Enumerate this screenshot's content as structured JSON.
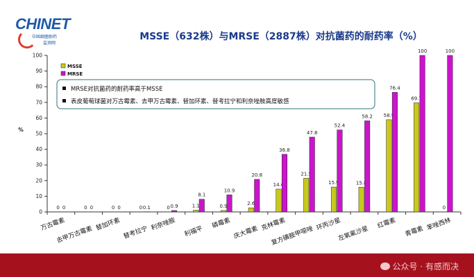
{
  "logo": {
    "text": "CHINET",
    "sub1": "中国细菌耐药",
    "sub2": "监测网"
  },
  "chart_data": {
    "type": "bar",
    "title": "MSSE（632株）与MRSE（2887株）对抗菌药的耐药率（%）",
    "ylabel": "%",
    "xlabel": "",
    "ylim": [
      0,
      100
    ],
    "yticks": [
      0,
      10,
      20,
      30,
      40,
      50,
      60,
      70,
      80,
      90,
      100
    ],
    "grid": false,
    "legend_position": "top-left",
    "categories": [
      "万古霉素",
      "去甲万古霉素",
      "替加环素",
      "替考拉宁",
      "利奈唑胺",
      "利福平",
      "磷霉素",
      "庆大霉素",
      "克林霉素",
      "复方磺胺甲噁唑",
      "环丙沙星",
      "左氧氟沙星",
      "红霉素",
      "青霉素",
      "苯唑西林"
    ],
    "series": [
      {
        "name": "MSSE",
        "color": "#c8c81e",
        "values": [
          0,
          0,
          0,
          0,
          0,
          1.1,
          0.9,
          2.6,
          14.6,
          21.5,
          15.9,
          15.8,
          58.9,
          69.7,
          0
        ],
        "labels": [
          "0",
          "0",
          "0",
          "0",
          "0",
          "1.1",
          "0.9",
          "2.6",
          "14.6",
          "21.5",
          "15.9",
          "15.8",
          "58.9",
          "69.7",
          "0"
        ]
      },
      {
        "name": "MRSE",
        "color": "#cc14cc",
        "values": [
          0,
          0,
          0,
          0.1,
          0.9,
          8.1,
          10.9,
          20.8,
          36.8,
          47.8,
          52.4,
          58.2,
          76.4,
          100,
          100
        ],
        "labels": [
          "0",
          "0",
          "0",
          "0.1",
          "0.9",
          "8.1",
          "10.9",
          "20.8",
          "36.8",
          "47.8",
          "52.4",
          "58.2",
          "76.4",
          "100",
          "100"
        ]
      }
    ],
    "notes": [
      "MRSE对抗菌药的耐药率高于MSSE",
      "表皮葡萄球菌对万古霉素、去甲万古霉素、替加环素、替考拉宁和利奈唑胺高度敏感"
    ]
  },
  "watermark": {
    "text": "公众号 · 有感而决"
  },
  "colors": {
    "title": "#1a3a8c",
    "footer": "#a5121e"
  }
}
